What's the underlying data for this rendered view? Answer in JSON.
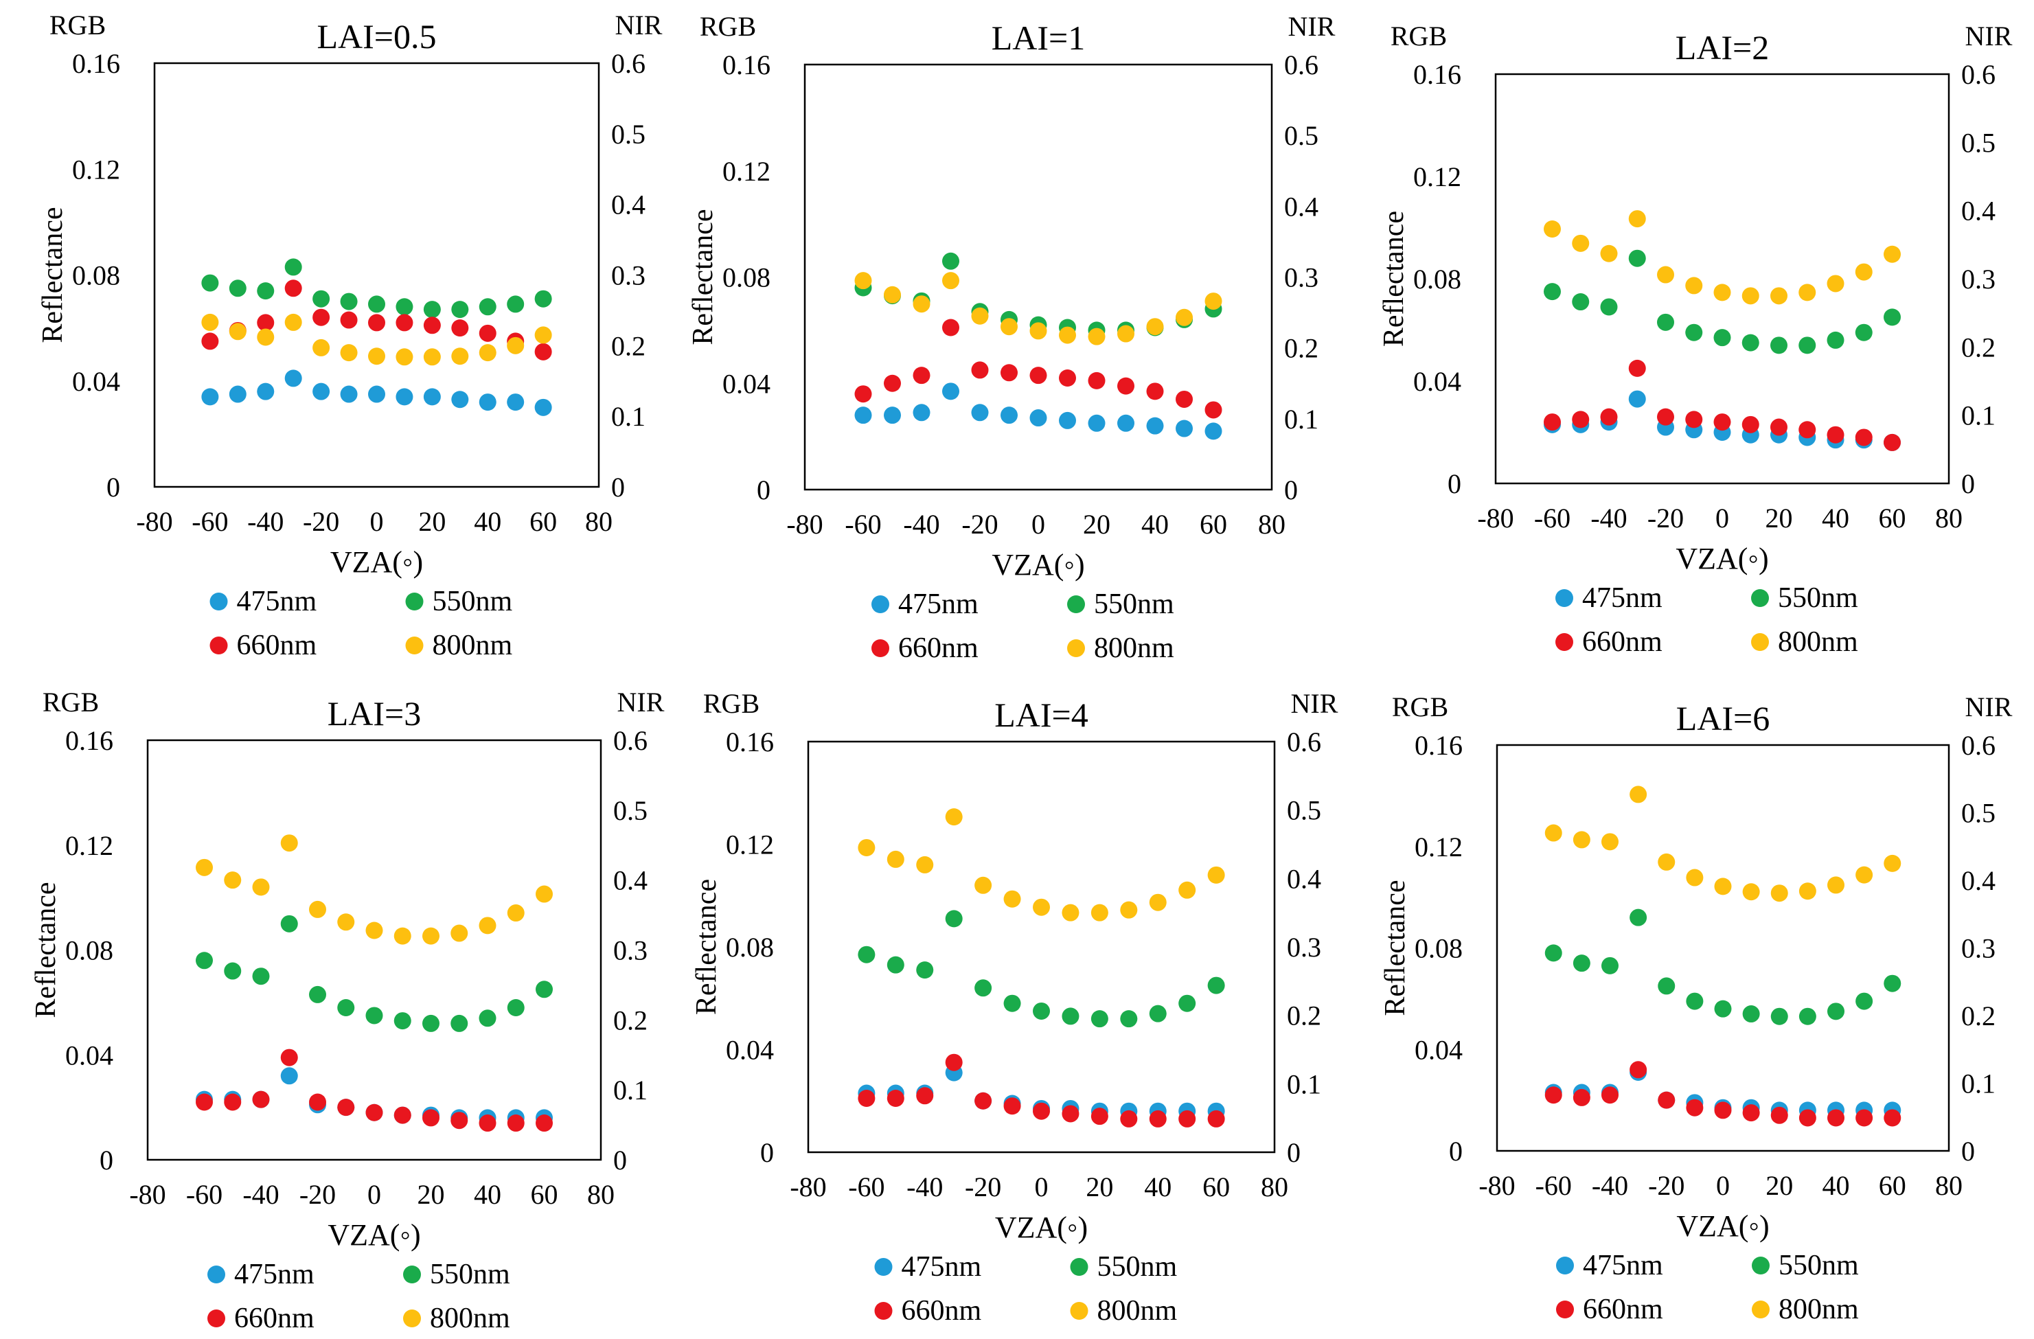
{
  "chart_data": [
    {
      "type": "scatter",
      "title": "LAI=0.5",
      "xlabel": "VZA(◦)",
      "ylabel": "Reflectance",
      "left_axis_label": "RGB",
      "right_axis_label": "NIR",
      "xlim": [
        -80,
        80
      ],
      "xticks": [
        -80,
        -60,
        -40,
        -20,
        0,
        20,
        40,
        60,
        80
      ],
      "ylim": [
        0,
        0.16
      ],
      "yticks": [
        "0",
        "0.04",
        "0.08",
        "0.12",
        "0.16"
      ],
      "y2lim": [
        0,
        0.6
      ],
      "y2ticks": [
        "0",
        "0.1",
        "0.2",
        "0.3",
        "0.4",
        "0.5",
        "0.6"
      ],
      "grid": false,
      "x": [
        -60,
        -50,
        -40,
        -30,
        -20,
        -10,
        0,
        10,
        20,
        30,
        40,
        50,
        60
      ],
      "series": [
        {
          "name": "475nm",
          "axis": "left",
          "color": "#1f9bd7",
          "values": [
            0.034,
            0.035,
            0.036,
            0.041,
            0.036,
            0.035,
            0.035,
            0.034,
            0.034,
            0.033,
            0.032,
            0.032,
            0.03
          ]
        },
        {
          "name": "550nm",
          "axis": "left",
          "color": "#1aab4b",
          "values": [
            0.077,
            0.075,
            0.074,
            0.083,
            0.071,
            0.07,
            0.069,
            0.068,
            0.067,
            0.067,
            0.068,
            0.069,
            0.071
          ]
        },
        {
          "name": "660nm",
          "axis": "left",
          "color": "#e8161e",
          "values": [
            0.055,
            0.059,
            0.062,
            0.075,
            0.064,
            0.063,
            0.062,
            0.062,
            0.061,
            0.06,
            0.058,
            0.055,
            0.051
          ]
        },
        {
          "name": "800nm",
          "axis": "right",
          "color": "#fdbf0f",
          "values": [
            0.233,
            0.22,
            0.212,
            0.233,
            0.197,
            0.19,
            0.185,
            0.184,
            0.184,
            0.185,
            0.19,
            0.2,
            0.215
          ]
        }
      ]
    },
    {
      "type": "scatter",
      "title": "LAI=1",
      "xlabel": "VZA(◦)",
      "ylabel": "Reflectance",
      "left_axis_label": "RGB",
      "right_axis_label": "NIR",
      "xlim": [
        -80,
        80
      ],
      "xticks": [
        -80,
        -60,
        -40,
        -20,
        0,
        20,
        40,
        60,
        80
      ],
      "ylim": [
        0,
        0.16
      ],
      "yticks": [
        "0",
        "0.04",
        "0.08",
        "0.12",
        "0.16"
      ],
      "y2lim": [
        0,
        0.6
      ],
      "y2ticks": [
        "0",
        "0.1",
        "0.2",
        "0.3",
        "0.4",
        "0.5",
        "0.6"
      ],
      "grid": false,
      "x": [
        -60,
        -50,
        -40,
        -30,
        -20,
        -10,
        0,
        10,
        20,
        30,
        40,
        50,
        60
      ],
      "series": [
        {
          "name": "475nm",
          "axis": "left",
          "color": "#1f9bd7",
          "values": [
            0.028,
            0.028,
            0.029,
            0.037,
            0.029,
            0.028,
            0.027,
            0.026,
            0.025,
            0.025,
            0.024,
            0.023,
            0.022
          ]
        },
        {
          "name": "550nm",
          "axis": "left",
          "color": "#1aab4b",
          "values": [
            0.076,
            0.073,
            0.071,
            0.086,
            0.067,
            0.064,
            0.062,
            0.061,
            0.06,
            0.06,
            0.061,
            0.064,
            0.068
          ]
        },
        {
          "name": "660nm",
          "axis": "left",
          "color": "#e8161e",
          "values": [
            0.036,
            0.04,
            0.043,
            0.061,
            0.045,
            0.044,
            0.043,
            0.042,
            0.041,
            0.039,
            0.037,
            0.034,
            0.03
          ]
        },
        {
          "name": "800nm",
          "axis": "right",
          "color": "#fdbf0f",
          "values": [
            0.295,
            0.275,
            0.262,
            0.295,
            0.245,
            0.23,
            0.224,
            0.218,
            0.216,
            0.22,
            0.23,
            0.243,
            0.266
          ]
        }
      ]
    },
    {
      "type": "scatter",
      "title": "LAI=2",
      "xlabel": "VZA(◦)",
      "ylabel": "Reflectance",
      "left_axis_label": "RGB",
      "right_axis_label": "NIR",
      "xlim": [
        -80,
        80
      ],
      "xticks": [
        -80,
        -60,
        -40,
        -20,
        0,
        20,
        40,
        60,
        80
      ],
      "ylim": [
        0,
        0.16
      ],
      "yticks": [
        "0",
        "0.04",
        "0.08",
        "0.12",
        "0.16"
      ],
      "y2lim": [
        0,
        0.6
      ],
      "y2ticks": [
        "0",
        "0.1",
        "0.2",
        "0.3",
        "0.4",
        "0.5",
        "0.6"
      ],
      "grid": false,
      "x": [
        -60,
        -50,
        -40,
        -30,
        -20,
        -10,
        0,
        10,
        20,
        30,
        40,
        50,
        60
      ],
      "series": [
        {
          "name": "475nm",
          "axis": "left",
          "color": "#1f9bd7",
          "values": [
            0.023,
            0.023,
            0.024,
            0.033,
            0.022,
            0.021,
            0.02,
            0.019,
            0.019,
            0.018,
            0.017,
            0.017,
            0.016
          ]
        },
        {
          "name": "550nm",
          "axis": "left",
          "color": "#1aab4b",
          "values": [
            0.075,
            0.071,
            0.069,
            0.088,
            0.063,
            0.059,
            0.057,
            0.055,
            0.054,
            0.054,
            0.056,
            0.059,
            0.065
          ]
        },
        {
          "name": "660nm",
          "axis": "left",
          "color": "#e8161e",
          "values": [
            0.024,
            0.025,
            0.026,
            0.045,
            0.026,
            0.025,
            0.024,
            0.023,
            0.022,
            0.021,
            0.019,
            0.018,
            0.016
          ]
        },
        {
          "name": "800nm",
          "axis": "right",
          "color": "#fdbf0f",
          "values": [
            0.373,
            0.352,
            0.337,
            0.388,
            0.306,
            0.29,
            0.28,
            0.275,
            0.275,
            0.28,
            0.293,
            0.31,
            0.336
          ]
        }
      ]
    },
    {
      "type": "scatter",
      "title": "LAI=3",
      "xlabel": "VZA(◦)",
      "ylabel": "Reflectance",
      "left_axis_label": "RGB",
      "right_axis_label": "NIR",
      "xlim": [
        -80,
        80
      ],
      "xticks": [
        -80,
        -60,
        -40,
        -20,
        0,
        20,
        40,
        60,
        80
      ],
      "ylim": [
        0,
        0.16
      ],
      "yticks": [
        "0",
        "0.04",
        "0.08",
        "0.12",
        "0.16"
      ],
      "y2lim": [
        0,
        0.6
      ],
      "y2ticks": [
        "0",
        "0.1",
        "0.2",
        "0.3",
        "0.4",
        "0.5",
        "0.6"
      ],
      "grid": false,
      "x": [
        -60,
        -50,
        -40,
        -30,
        -20,
        -10,
        0,
        10,
        20,
        30,
        40,
        50,
        60
      ],
      "series": [
        {
          "name": "475nm",
          "axis": "left",
          "color": "#1f9bd7",
          "values": [
            0.023,
            0.023,
            0.023,
            0.032,
            0.021,
            0.02,
            0.018,
            0.017,
            0.017,
            0.016,
            0.016,
            0.016,
            0.016
          ]
        },
        {
          "name": "550nm",
          "axis": "left",
          "color": "#1aab4b",
          "values": [
            0.076,
            0.072,
            0.07,
            0.09,
            0.063,
            0.058,
            0.055,
            0.053,
            0.052,
            0.052,
            0.054,
            0.058,
            0.065
          ]
        },
        {
          "name": "660nm",
          "axis": "left",
          "color": "#e8161e",
          "values": [
            0.022,
            0.022,
            0.023,
            0.039,
            0.022,
            0.02,
            0.018,
            0.017,
            0.016,
            0.015,
            0.014,
            0.014,
            0.014
          ]
        },
        {
          "name": "800nm",
          "axis": "right",
          "color": "#fdbf0f",
          "values": [
            0.418,
            0.4,
            0.39,
            0.453,
            0.358,
            0.34,
            0.328,
            0.32,
            0.32,
            0.324,
            0.335,
            0.353,
            0.38
          ]
        }
      ]
    },
    {
      "type": "scatter",
      "title": "LAI=4",
      "xlabel": "VZA(◦)",
      "ylabel": "Reflectance",
      "left_axis_label": "RGB",
      "right_axis_label": "NIR",
      "xlim": [
        -80,
        80
      ],
      "xticks": [
        -80,
        -60,
        -40,
        -20,
        0,
        20,
        40,
        60,
        80
      ],
      "ylim": [
        0,
        0.16
      ],
      "yticks": [
        "0",
        "0.04",
        "0.08",
        "0.12",
        "0.16"
      ],
      "y2lim": [
        0,
        0.6
      ],
      "y2ticks": [
        "0",
        "0.1",
        "0.2",
        "0.3",
        "0.4",
        "0.5",
        "0.6"
      ],
      "grid": false,
      "x": [
        -60,
        -50,
        -40,
        -30,
        -20,
        -10,
        0,
        10,
        20,
        30,
        40,
        50,
        60
      ],
      "series": [
        {
          "name": "475nm",
          "axis": "left",
          "color": "#1f9bd7",
          "values": [
            0.023,
            0.023,
            0.023,
            0.031,
            0.02,
            0.019,
            0.017,
            0.017,
            0.016,
            0.016,
            0.016,
            0.016,
            0.016
          ]
        },
        {
          "name": "550nm",
          "axis": "left",
          "color": "#1aab4b",
          "values": [
            0.077,
            0.073,
            0.071,
            0.091,
            0.064,
            0.058,
            0.055,
            0.053,
            0.052,
            0.052,
            0.054,
            0.058,
            0.065
          ]
        },
        {
          "name": "660nm",
          "axis": "left",
          "color": "#e8161e",
          "values": [
            0.021,
            0.021,
            0.022,
            0.035,
            0.02,
            0.018,
            0.016,
            0.015,
            0.014,
            0.013,
            0.013,
            0.013,
            0.013
          ]
        },
        {
          "name": "800nm",
          "axis": "right",
          "color": "#fdbf0f",
          "values": [
            0.445,
            0.428,
            0.42,
            0.49,
            0.39,
            0.37,
            0.358,
            0.35,
            0.35,
            0.354,
            0.365,
            0.383,
            0.405
          ]
        }
      ]
    },
    {
      "type": "scatter",
      "title": "LAI=6",
      "xlabel": "VZA(◦)",
      "ylabel": "Reflectance",
      "left_axis_label": "RGB",
      "right_axis_label": "NIR",
      "xlim": [
        -80,
        80
      ],
      "xticks": [
        -80,
        -60,
        -40,
        -20,
        0,
        20,
        40,
        60,
        80
      ],
      "ylim": [
        0,
        0.16
      ],
      "yticks": [
        "0",
        "0.04",
        "0.08",
        "0.12",
        "0.16"
      ],
      "y2lim": [
        0,
        0.6
      ],
      "y2ticks": [
        "0",
        "0.1",
        "0.2",
        "0.3",
        "0.4",
        "0.5",
        "0.6"
      ],
      "grid": false,
      "x": [
        -60,
        -50,
        -40,
        -30,
        -20,
        -10,
        0,
        10,
        20,
        30,
        40,
        50,
        60
      ],
      "series": [
        {
          "name": "475nm",
          "axis": "left",
          "color": "#1f9bd7",
          "values": [
            0.023,
            0.023,
            0.023,
            0.031,
            0.02,
            0.019,
            0.017,
            0.017,
            0.016,
            0.016,
            0.016,
            0.016,
            0.016
          ]
        },
        {
          "name": "550nm",
          "axis": "left",
          "color": "#1aab4b",
          "values": [
            0.078,
            0.074,
            0.073,
            0.092,
            0.065,
            0.059,
            0.056,
            0.054,
            0.053,
            0.053,
            0.055,
            0.059,
            0.066
          ]
        },
        {
          "name": "660nm",
          "axis": "left",
          "color": "#e8161e",
          "values": [
            0.022,
            0.021,
            0.022,
            0.032,
            0.02,
            0.017,
            0.016,
            0.015,
            0.014,
            0.013,
            0.013,
            0.013,
            0.013
          ]
        },
        {
          "name": "800nm",
          "axis": "right",
          "color": "#fdbf0f",
          "values": [
            0.47,
            0.46,
            0.457,
            0.527,
            0.427,
            0.404,
            0.391,
            0.383,
            0.381,
            0.384,
            0.393,
            0.408,
            0.425
          ]
        }
      ]
    }
  ]
}
